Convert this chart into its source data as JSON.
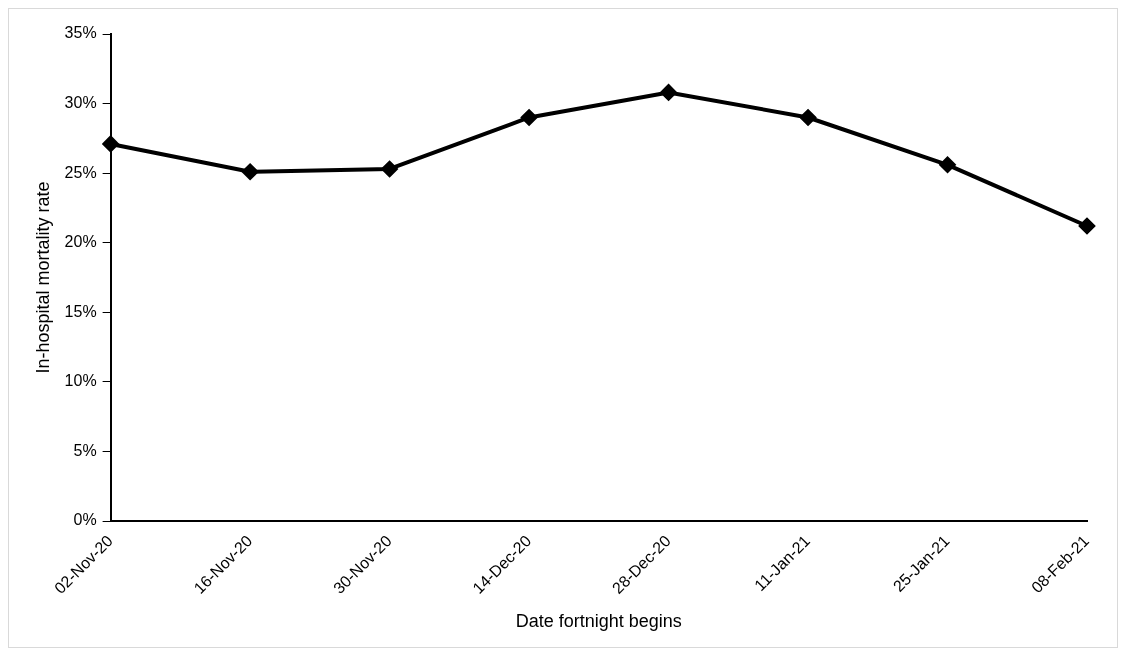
{
  "chart_data": {
    "type": "line",
    "xlabel": "Date fortnight begins",
    "ylabel": "In-hospital mortality rate",
    "categories": [
      "02-Nov-20",
      "16-Nov-20",
      "30-Nov-20",
      "14-Dec-20",
      "28-Dec-20",
      "11-Jan-21",
      "25-Jan-21",
      "08-Feb-21"
    ],
    "series": [
      {
        "color": "#000000",
        "values": [
          27.1,
          25.1,
          25.3,
          29.0,
          30.8,
          29.0,
          25.6,
          21.2
        ]
      }
    ],
    "ylim": [
      0,
      35
    ],
    "yticks": [
      {
        "value": 0,
        "label": "0%"
      },
      {
        "value": 5,
        "label": "5%"
      },
      {
        "value": 10,
        "label": "10%"
      },
      {
        "value": 15,
        "label": "15%"
      },
      {
        "value": 20,
        "label": "20%"
      },
      {
        "value": 25,
        "label": "25%"
      },
      {
        "value": 30,
        "label": "30%"
      },
      {
        "value": 35,
        "label": "35%"
      }
    ],
    "grid": false,
    "legend": false,
    "marker": "diamond",
    "line_style": "solid"
  }
}
